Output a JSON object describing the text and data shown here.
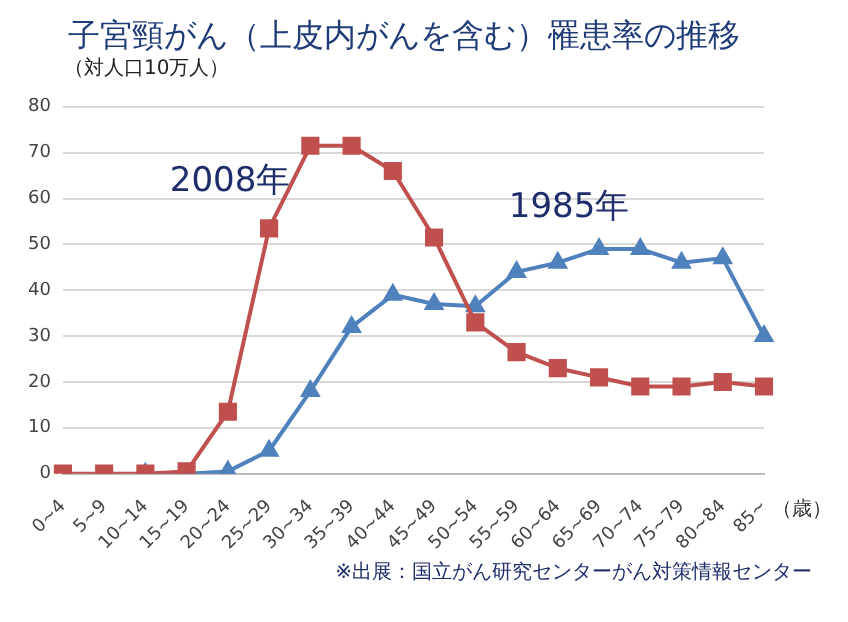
{
  "chart_data": {
    "type": "line",
    "title": "子宮頸がん（上皮内がんを含む）罹患率の推移",
    "ylabel": "（対人口10万人）",
    "xlabel": "（歳）",
    "categories": [
      "0~4",
      "5~9",
      "10~14",
      "15~19",
      "20~24",
      "25~29",
      "30~34",
      "35~39",
      "40~44",
      "45~49",
      "50~54",
      "55~59",
      "60~64",
      "65~69",
      "70~74",
      "75~79",
      "80~84",
      "85~"
    ],
    "series": [
      {
        "name": "2008年",
        "color": "#c0504d",
        "marker": "square",
        "values": [
          0,
          0,
          0,
          0.5,
          13.5,
          53.5,
          71.5,
          71.5,
          66,
          51.5,
          33,
          26.5,
          23,
          21,
          19,
          19,
          20,
          19
        ]
      },
      {
        "name": "1985年",
        "color": "#4f81bd",
        "marker": "triangle",
        "values": [
          null,
          null,
          0,
          0,
          0.5,
          5,
          18,
          32,
          39,
          37,
          36.5,
          44,
          46,
          49,
          49,
          46,
          47,
          30
        ]
      }
    ],
    "ylim": [
      0,
      80
    ],
    "yticks": [
      0,
      10,
      20,
      30,
      40,
      50,
      60,
      70,
      80
    ],
    "grid": "y",
    "legend": false,
    "line_style": "solid",
    "annotations": [
      "※出展：国立がん研究センターがん対策情報センター"
    ]
  }
}
